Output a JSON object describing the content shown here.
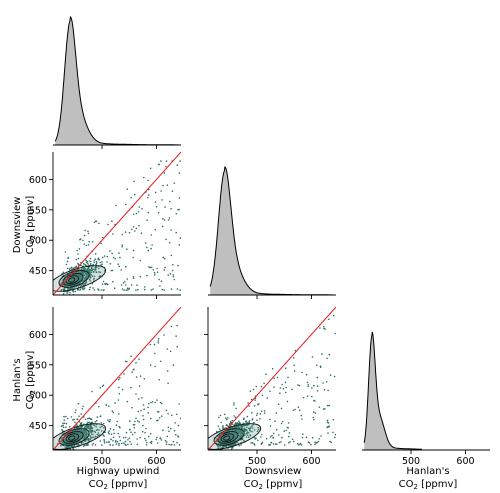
{
  "chart_data": {
    "type": "pairplot",
    "variables": [
      "Highway upwind",
      "Downsview",
      "Hanlan's"
    ],
    "unit_label": "CO₂ [ppmv]",
    "axis_range": [
      410,
      645
    ],
    "ticks": [
      450,
      500,
      550,
      600
    ],
    "x_tick_labels": [
      "500",
      "600"
    ],
    "x_tick_values": [
      500,
      600
    ],
    "y_tick_labels": [
      "450",
      "500",
      "550",
      "600"
    ],
    "colors": {
      "kde_fill": "#bfbfbf",
      "kde_line": "#000000",
      "scatter": "#2e7063",
      "kde_fill_2d": "#4e8a82",
      "identity_line": "#e8191c"
    },
    "diagonal_kde": [
      {
        "variable": "Highway upwind",
        "peak_x": 441,
        "peak_width": 10,
        "tail_to": 640
      },
      {
        "variable": "Downsview",
        "peak_x": 440,
        "peak_width": 11,
        "tail_to": 640
      },
      {
        "variable": "Hanlan's",
        "peak_x": 428,
        "peak_width": 6,
        "tail_to": 520
      }
    ],
    "scatter_panels": [
      {
        "x": "Highway upwind",
        "y": "Downsview",
        "core_x": 435,
        "core_y": 430,
        "spread": 28
      },
      {
        "x": "Highway upwind",
        "y": "Hanlan's",
        "core_x": 435,
        "core_y": 425,
        "spread": 24
      },
      {
        "x": "Downsview",
        "y": "Hanlan's",
        "core_x": 435,
        "core_y": 425,
        "spread": 26
      }
    ],
    "xlabels": [
      {
        "name": "Highway upwind",
        "unit": "CO2 [ppmv]"
      },
      {
        "name": "Downsview",
        "unit": "CO2 [ppmv]"
      },
      {
        "name": "Hanlan's",
        "unit": "CO2 [ppmv]"
      }
    ],
    "ylabels": [
      {
        "name": "Downsview",
        "unit": "CO2 [ppmv]"
      },
      {
        "name": "Hanlan's",
        "unit": "CO2 [ppmv]"
      }
    ]
  }
}
